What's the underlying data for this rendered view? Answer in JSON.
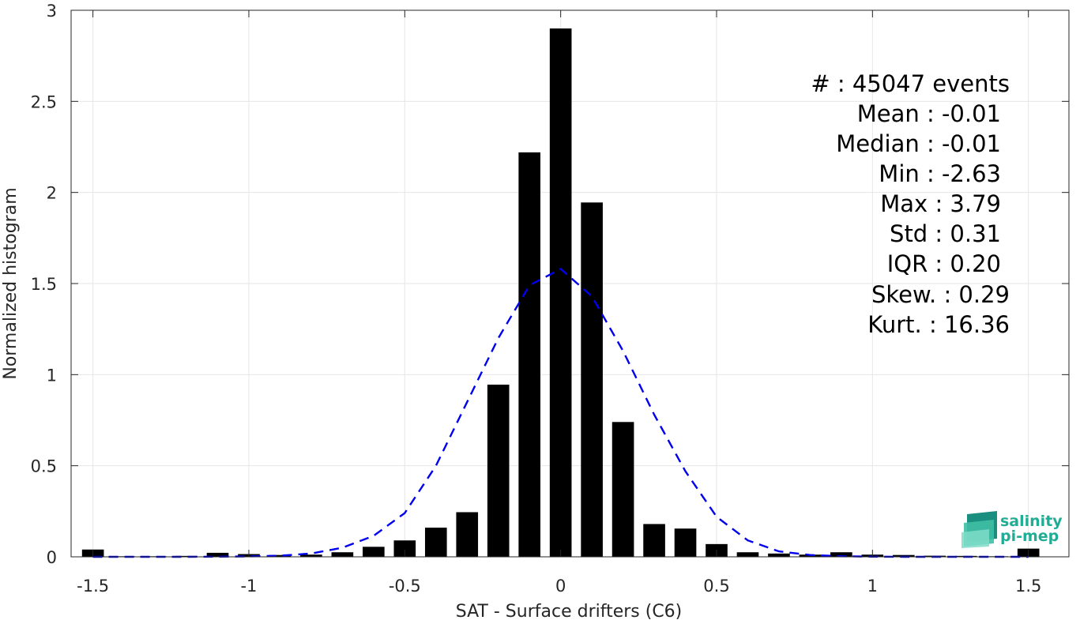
{
  "chart_data": {
    "type": "bar",
    "title": "",
    "xlabel": "SAT - Surface drifters (C6)",
    "ylabel": "Normalized histogram",
    "xlim": [
      -1.57,
      1.63
    ],
    "ylim": [
      0,
      3
    ],
    "xticks": [
      -1.5,
      -1,
      -0.5,
      0,
      0.5,
      1,
      1.5
    ],
    "xtick_labels": [
      "-1.5",
      "-1",
      "-0.5",
      "0",
      "0.5",
      "1",
      "1.5"
    ],
    "yticks": [
      0,
      0.5,
      1,
      1.5,
      2,
      2.5,
      3
    ],
    "ytick_labels": [
      "0",
      "0.5",
      "1",
      "1.5",
      "2",
      "2.5",
      "3"
    ],
    "grid": true,
    "bar_color": "#000000",
    "bar_width": 0.07,
    "series": [
      {
        "x": [
          -1.5,
          -1.4,
          -1.3,
          -1.2,
          -1.1,
          -1.0,
          -0.9,
          -0.8,
          -0.7,
          -0.6,
          -0.5,
          -0.4,
          -0.3,
          -0.2,
          -0.1,
          0.0,
          0.1,
          0.2,
          0.3,
          0.4,
          0.5,
          0.6,
          0.7,
          0.8,
          0.9,
          1.0,
          1.1,
          1.2,
          1.3,
          1.4,
          1.5
        ],
        "values": [
          0.04,
          0.003,
          0.003,
          0.005,
          0.022,
          0.015,
          0.01,
          0.012,
          0.025,
          0.055,
          0.09,
          0.16,
          0.245,
          0.945,
          2.22,
          2.9,
          1.945,
          0.74,
          0.18,
          0.155,
          0.07,
          0.025,
          0.018,
          0.012,
          0.025,
          0.012,
          0.01,
          0.006,
          0.005,
          0.003,
          0.045
        ]
      }
    ],
    "fit_curve": {
      "color": "#0000ee",
      "style": "dashed",
      "x": [
        -1.5,
        -1.4,
        -1.3,
        -1.2,
        -1.1,
        -1.0,
        -0.9,
        -0.8,
        -0.7,
        -0.6,
        -0.5,
        -0.4,
        -0.3,
        -0.2,
        -0.1,
        0.0,
        0.1,
        0.2,
        0.3,
        0.4,
        0.5,
        0.6,
        0.7,
        0.8,
        0.9,
        1.0,
        1.1,
        1.2,
        1.3,
        1.4,
        1.5
      ],
      "y": [
        0.0,
        0.0,
        0.0,
        0.0,
        0.001,
        0.002,
        0.006,
        0.018,
        0.05,
        0.115,
        0.24,
        0.5,
        0.85,
        1.2,
        1.49,
        1.58,
        1.43,
        1.13,
        0.78,
        0.47,
        0.22,
        0.09,
        0.03,
        0.01,
        0.003,
        0.001,
        0.0,
        0.0,
        0.0,
        0.0,
        0.0
      ]
    },
    "annotations": [
      "#  : 45047 events",
      "Mean : -0.01",
      "Median : -0.01",
      "Min : -2.63",
      "Max : 3.79",
      "Std : 0.31",
      "IQR : 0.20",
      "Skew. : 0.29",
      "Kurt. : 16.36"
    ]
  },
  "logo": {
    "line1": "salinity",
    "line2": "pi-mep"
  }
}
